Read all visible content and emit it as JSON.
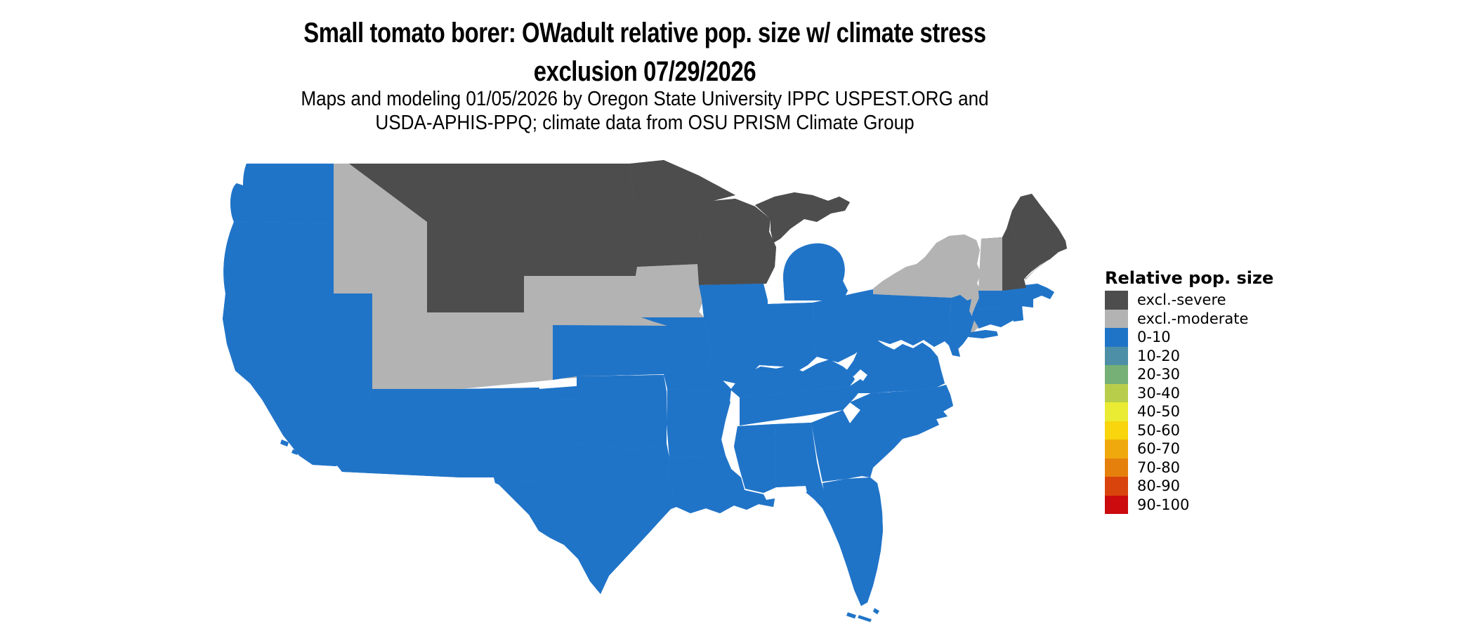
{
  "title": {
    "line1": "Small tomato borer: OWadult relative pop. size w/ climate stress",
    "line2": "exclusion 07/29/2026"
  },
  "subtitle": {
    "line1": "Maps and modeling 01/05/2026 by Oregon State University IPPC USPEST.ORG and",
    "line2": "USDA-APHIS-PPQ; climate data from OSU PRISM Climate Group"
  },
  "legend": {
    "title": "Relative pop. size",
    "items": [
      {
        "label": "excl.-severe",
        "color": "#4d4d4d"
      },
      {
        "label": "excl.-moderate",
        "color": "#b3b3b3"
      },
      {
        "label": "0-10",
        "color": "#2074c8"
      },
      {
        "label": "10-20",
        "color": "#4d8fa6"
      },
      {
        "label": "20-30",
        "color": "#76b077"
      },
      {
        "label": "30-40",
        "color": "#b8ce4b"
      },
      {
        "label": "40-50",
        "color": "#eaeb33"
      },
      {
        "label": "50-60",
        "color": "#f8d50c"
      },
      {
        "label": "60-70",
        "color": "#f0a90c"
      },
      {
        "label": "70-80",
        "color": "#e6800d"
      },
      {
        "label": "80-90",
        "color": "#d9440d"
      },
      {
        "label": "90-100",
        "color": "#cb0b0e"
      }
    ]
  },
  "map": {
    "region": "Contiguous United States",
    "palette": {
      "excl_severe": "#4d4d4d",
      "excl_moderate": "#b3b3b3",
      "pop_0_10": "#2074c8",
      "border": "#000000",
      "background": "#ffffff"
    },
    "state_fills": {
      "WA": "0-10",
      "OR": "0-10",
      "CA": "0-10",
      "NV": "0-10",
      "ID": "excl.-moderate",
      "MT": "excl.-severe",
      "WY": "excl.-severe",
      "UT": "excl.-moderate",
      "CO": "excl.-moderate",
      "AZ": "0-10",
      "NM": "0-10",
      "ND": "excl.-severe",
      "SD": "excl.-severe",
      "NE": "excl.-moderate",
      "KS": "0-10",
      "OK": "0-10",
      "TX": "0-10",
      "MN": "excl.-severe",
      "IA": "excl.-moderate",
      "MO": "0-10",
      "AR": "0-10",
      "LA": "0-10",
      "WI": "excl.-severe",
      "IL": "0-10",
      "IN": "0-10",
      "OH": "0-10",
      "MI_UP": "excl.-severe",
      "MI": "0-10",
      "KY": "0-10",
      "TN": "0-10",
      "MS": "0-10",
      "AL": "0-10",
      "GA": "0-10",
      "FL": "0-10",
      "SC": "0-10",
      "NC": "0-10",
      "VA": "0-10",
      "WV": "0-10",
      "PA": "0-10",
      "NY": "excl.-moderate",
      "NY_LI": "0-10",
      "NJ": "0-10",
      "MD": "0-10",
      "DE": "0-10",
      "CT": "0-10",
      "RI": "0-10",
      "MA": "0-10",
      "VT": "excl.-moderate",
      "NH": "excl.-severe",
      "ME": "excl.-severe"
    }
  }
}
